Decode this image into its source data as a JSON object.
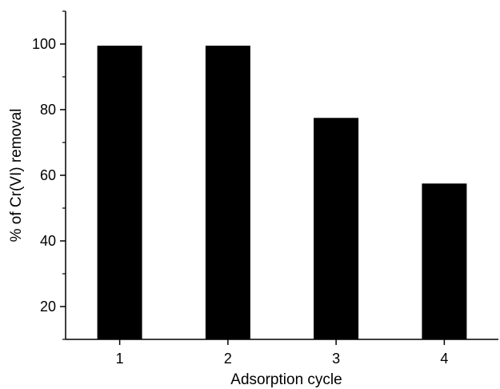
{
  "chart_data": {
    "type": "bar",
    "categories": [
      "1",
      "2",
      "3",
      "4"
    ],
    "values": [
      99.5,
      99.5,
      77.5,
      57.5
    ],
    "xlabel": "Adsorption cycle",
    "ylabel": "% of Cr(VI) removal",
    "ylim": [
      10,
      110
    ],
    "yticks": [
      20,
      40,
      60,
      80,
      100
    ],
    "ytick_labels": [
      "20",
      "40",
      "60",
      "80",
      "100"
    ],
    "bar_color": "#000000",
    "grid": false,
    "legend": false
  }
}
